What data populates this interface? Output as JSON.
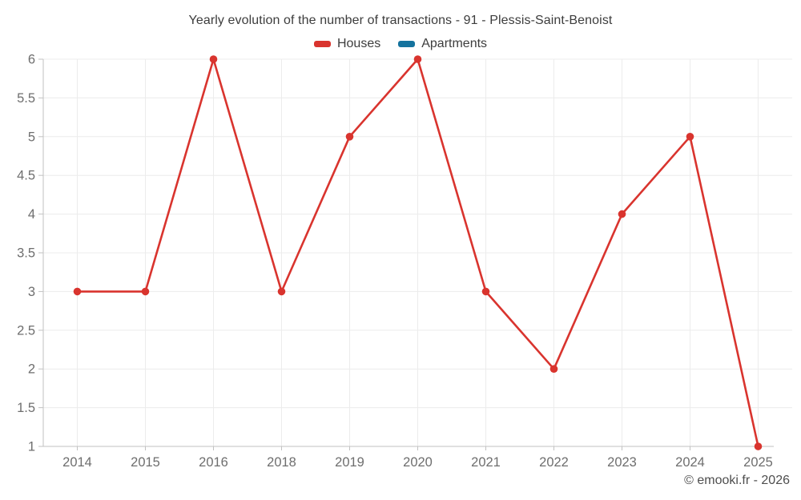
{
  "title": "Yearly evolution of the number of transactions - 91 - Plessis-Saint-Benoist",
  "legend": {
    "items": [
      {
        "label": "Houses",
        "color": "#d9342e"
      },
      {
        "label": "Apartments",
        "color": "#15739e"
      }
    ]
  },
  "watermark": "© emooki.fr - 2026",
  "chart_data": {
    "type": "line",
    "title": "Yearly evolution of the number of transactions - 91 - Plessis-Saint-Benoist",
    "categories": [
      "2014",
      "2015",
      "2016",
      "2018",
      "2019",
      "2020",
      "2021",
      "2022",
      "2023",
      "2024",
      "2025"
    ],
    "series": [
      {
        "name": "Houses",
        "color": "#d9342e",
        "values": [
          3,
          3,
          6,
          3,
          5,
          6,
          3,
          2,
          4,
          5,
          1
        ]
      },
      {
        "name": "Apartments",
        "color": "#15739e",
        "values": []
      }
    ],
    "xlabel": "",
    "ylabel": "",
    "ylim": [
      1,
      6
    ],
    "ytick_step": 0.5,
    "grid": true,
    "legend_position": "top",
    "colors": {
      "axis": "#c2c2c2",
      "grid": "#ececec",
      "tick_label": "#6e6e6e"
    }
  }
}
